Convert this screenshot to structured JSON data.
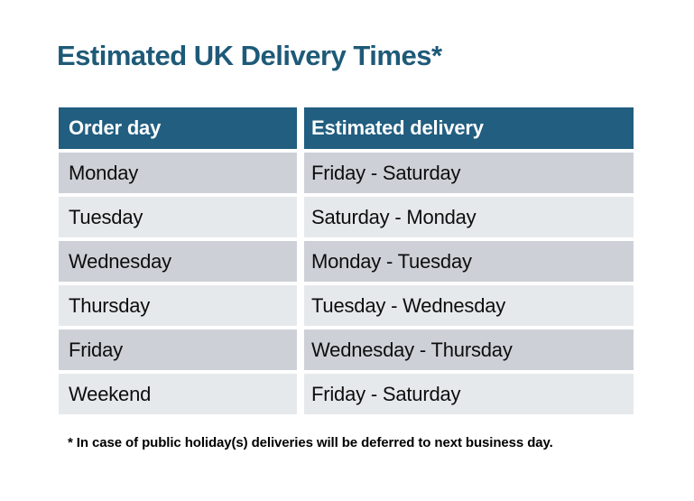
{
  "title": "Estimated UK Delivery Times*",
  "table": {
    "headers": [
      "Order day",
      "Estimated delivery"
    ],
    "rows": [
      {
        "order_day": "Monday",
        "estimated_delivery": "Friday - Saturday"
      },
      {
        "order_day": "Tuesday",
        "estimated_delivery": "Saturday - Monday"
      },
      {
        "order_day": "Wednesday",
        "estimated_delivery": "Monday - Tuesday"
      },
      {
        "order_day": "Thursday",
        "estimated_delivery": "Tuesday - Wednesday"
      },
      {
        "order_day": "Friday",
        "estimated_delivery": "Wednesday - Thursday"
      },
      {
        "order_day": "Weekend",
        "estimated_delivery": "Friday - Saturday"
      }
    ]
  },
  "footnote": "* In case of public holiday(s) deliveries will be deferred to next business day.",
  "colors": {
    "title_text": "#1e5a78",
    "header_bg": "#215e80",
    "header_text": "#ffffff",
    "row_dark": "#cdd1d7",
    "row_light": "#e6e9eb",
    "cell_text": "#0d0d0d",
    "footnote_text": "#000000",
    "background": "#ffffff"
  }
}
